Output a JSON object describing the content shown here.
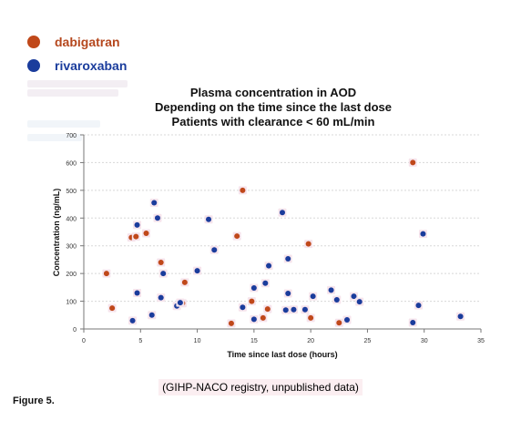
{
  "figure_label": "Figure 5.",
  "source_note": "(GIHP-NACO registry, unpublished data)",
  "chart_data": {
    "type": "scatter",
    "title": "Plasma concentration in AOD",
    "subtitle_lines": [
      "Depending on the time since the last dose",
      "Patients with clearance < 60 mL/min"
    ],
    "xlabel": "Time since last dose (hours)",
    "ylabel": "Concentration (ng/mL)",
    "xlim": [
      0,
      35
    ],
    "ylim": [
      0,
      700
    ],
    "x_ticks": [
      0,
      5,
      10,
      15,
      20,
      25,
      30,
      35
    ],
    "y_ticks": [
      0,
      100,
      200,
      300,
      400,
      500,
      600,
      700
    ],
    "legend_position": "top-left",
    "grid": "horizontal",
    "series": [
      {
        "name": "dabigatran",
        "color": "#c0481a",
        "label_color": "#b5471d",
        "points": [
          [
            2.0,
            200
          ],
          [
            2.5,
            75
          ],
          [
            4.2,
            330
          ],
          [
            4.6,
            333
          ],
          [
            5.5,
            345
          ],
          [
            6.8,
            240
          ],
          [
            8.7,
            93
          ],
          [
            8.9,
            168
          ],
          [
            13.0,
            20
          ],
          [
            13.5,
            335
          ],
          [
            14.0,
            500
          ],
          [
            14.8,
            100
          ],
          [
            15.8,
            40
          ],
          [
            16.2,
            72
          ],
          [
            19.8,
            307
          ],
          [
            20.0,
            40
          ],
          [
            22.5,
            22
          ],
          [
            29.0,
            600
          ]
        ]
      },
      {
        "name": "rivaroxaban",
        "color": "#1a3c9c",
        "label_color": "#1a3c9c",
        "points": [
          [
            4.3,
            30
          ],
          [
            4.7,
            375
          ],
          [
            4.7,
            130
          ],
          [
            6.0,
            50
          ],
          [
            6.2,
            455
          ],
          [
            6.5,
            400
          ],
          [
            6.8,
            113
          ],
          [
            7.0,
            200
          ],
          [
            8.2,
            83
          ],
          [
            8.5,
            95
          ],
          [
            10.0,
            210
          ],
          [
            11.0,
            395
          ],
          [
            11.5,
            285
          ],
          [
            14.0,
            78
          ],
          [
            15.0,
            35
          ],
          [
            15.0,
            148
          ],
          [
            16.0,
            165
          ],
          [
            16.3,
            228
          ],
          [
            17.5,
            420
          ],
          [
            17.8,
            68
          ],
          [
            18.0,
            128
          ],
          [
            18.0,
            253
          ],
          [
            18.5,
            70
          ],
          [
            19.5,
            70
          ],
          [
            20.2,
            118
          ],
          [
            21.8,
            140
          ],
          [
            22.3,
            105
          ],
          [
            23.2,
            33
          ],
          [
            23.8,
            118
          ],
          [
            24.3,
            98
          ],
          [
            29.0,
            23
          ],
          [
            29.5,
            85
          ],
          [
            29.9,
            343
          ],
          [
            33.2,
            45
          ]
        ]
      }
    ]
  }
}
